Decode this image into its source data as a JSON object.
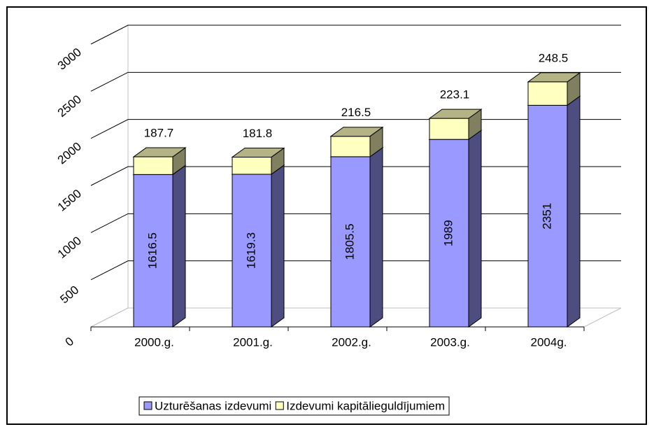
{
  "chart_data": {
    "type": "bar",
    "stacked": true,
    "categories": [
      "2000.g.",
      "2001.g.",
      "2002.g.",
      "2003.g.",
      "2004g."
    ],
    "series": [
      {
        "name": "Uzturēšanas izdevumi",
        "color": "#9999ff",
        "values": [
          1616.5,
          1619.3,
          1805.5,
          1989,
          2351
        ]
      },
      {
        "name": "Izdevumi kapitālieguldījumiem",
        "color": "#ffffc0",
        "values": [
          187.7,
          181.8,
          216.5,
          223.1,
          248.5
        ]
      }
    ],
    "ylim": [
      0,
      3000
    ],
    "yticks": [
      0,
      500,
      1000,
      1500,
      2000,
      2500,
      3000
    ],
    "grid": true,
    "legend": "bottom"
  }
}
